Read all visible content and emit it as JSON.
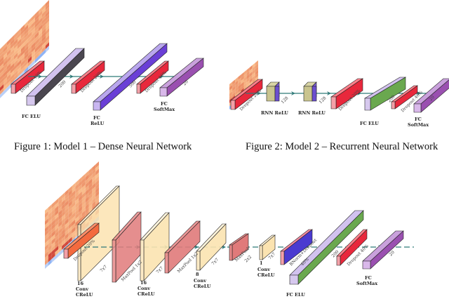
{
  "figures": [
    {
      "caption": "Figure 1: Model 1 – Dense Neural Network",
      "layer_labels": {
        "fc1": "FC ELU",
        "fc2_a": "FC",
        "fc2_b": "ReLU",
        "fc3_a": "FC",
        "fc3_b": "SoftMax"
      },
      "size_labels": {
        "d1": "Dropout 40%",
        "u1": "200",
        "d2": "Dropout 20%",
        "u2": "500",
        "d3": "Dropout 40%",
        "u3": "20"
      }
    },
    {
      "caption": "Figure 2: Model 2 – Recurrent Neural Network",
      "layer_labels": {
        "rnn1": "RNN ReLU",
        "rnn2": "RNN ReLU",
        "fc1": "FC ELU",
        "fc2_a": "FC",
        "fc2_b": "SoftMax"
      },
      "size_labels": {
        "d1": "Dropout 20%",
        "r1": "128",
        "r2": "128",
        "d2": "Dropout 20%",
        "u1": "200",
        "d3": "Dropout 40%",
        "u2": "20"
      }
    },
    {
      "layer_labels": {
        "c1_n": "16",
        "c1_a": "Conv",
        "c1_b": "CReLU",
        "c2_n": "16",
        "c2_a": "Conv",
        "c2_b": "CReLU",
        "c3_n": "8",
        "c3_a": "Conv",
        "c3_b": "CReLU",
        "c4_n": "1",
        "c4_a": "Conv",
        "c4_b": "CReLU",
        "fc1": "FC ELU",
        "fc2_a": "FC",
        "fc2_b": "SoftMax"
      },
      "size_labels": {
        "d1": "Dropout 20%",
        "k1": "7x7",
        "p1": "MaxPool 1x2",
        "k2": "7x7",
        "p2": "MaxPool 1x2",
        "k3": "7x7",
        "p3": "MaxPool",
        "p3b": "2x2",
        "k4": "7x7",
        "bn": "BNorm+Dropout",
        "bnb": "40%",
        "u1": "200",
        "d2": "Dropout 40%",
        "u2": "20"
      }
    }
  ],
  "colors": {
    "dropout": "#e8283c",
    "conv": "#fde9c0",
    "pool": "#e07a7a",
    "elu": "#6aa84f",
    "relu": "#6a3fd6",
    "softmax": "#9a50b0",
    "arrow": "#2f7a78"
  }
}
